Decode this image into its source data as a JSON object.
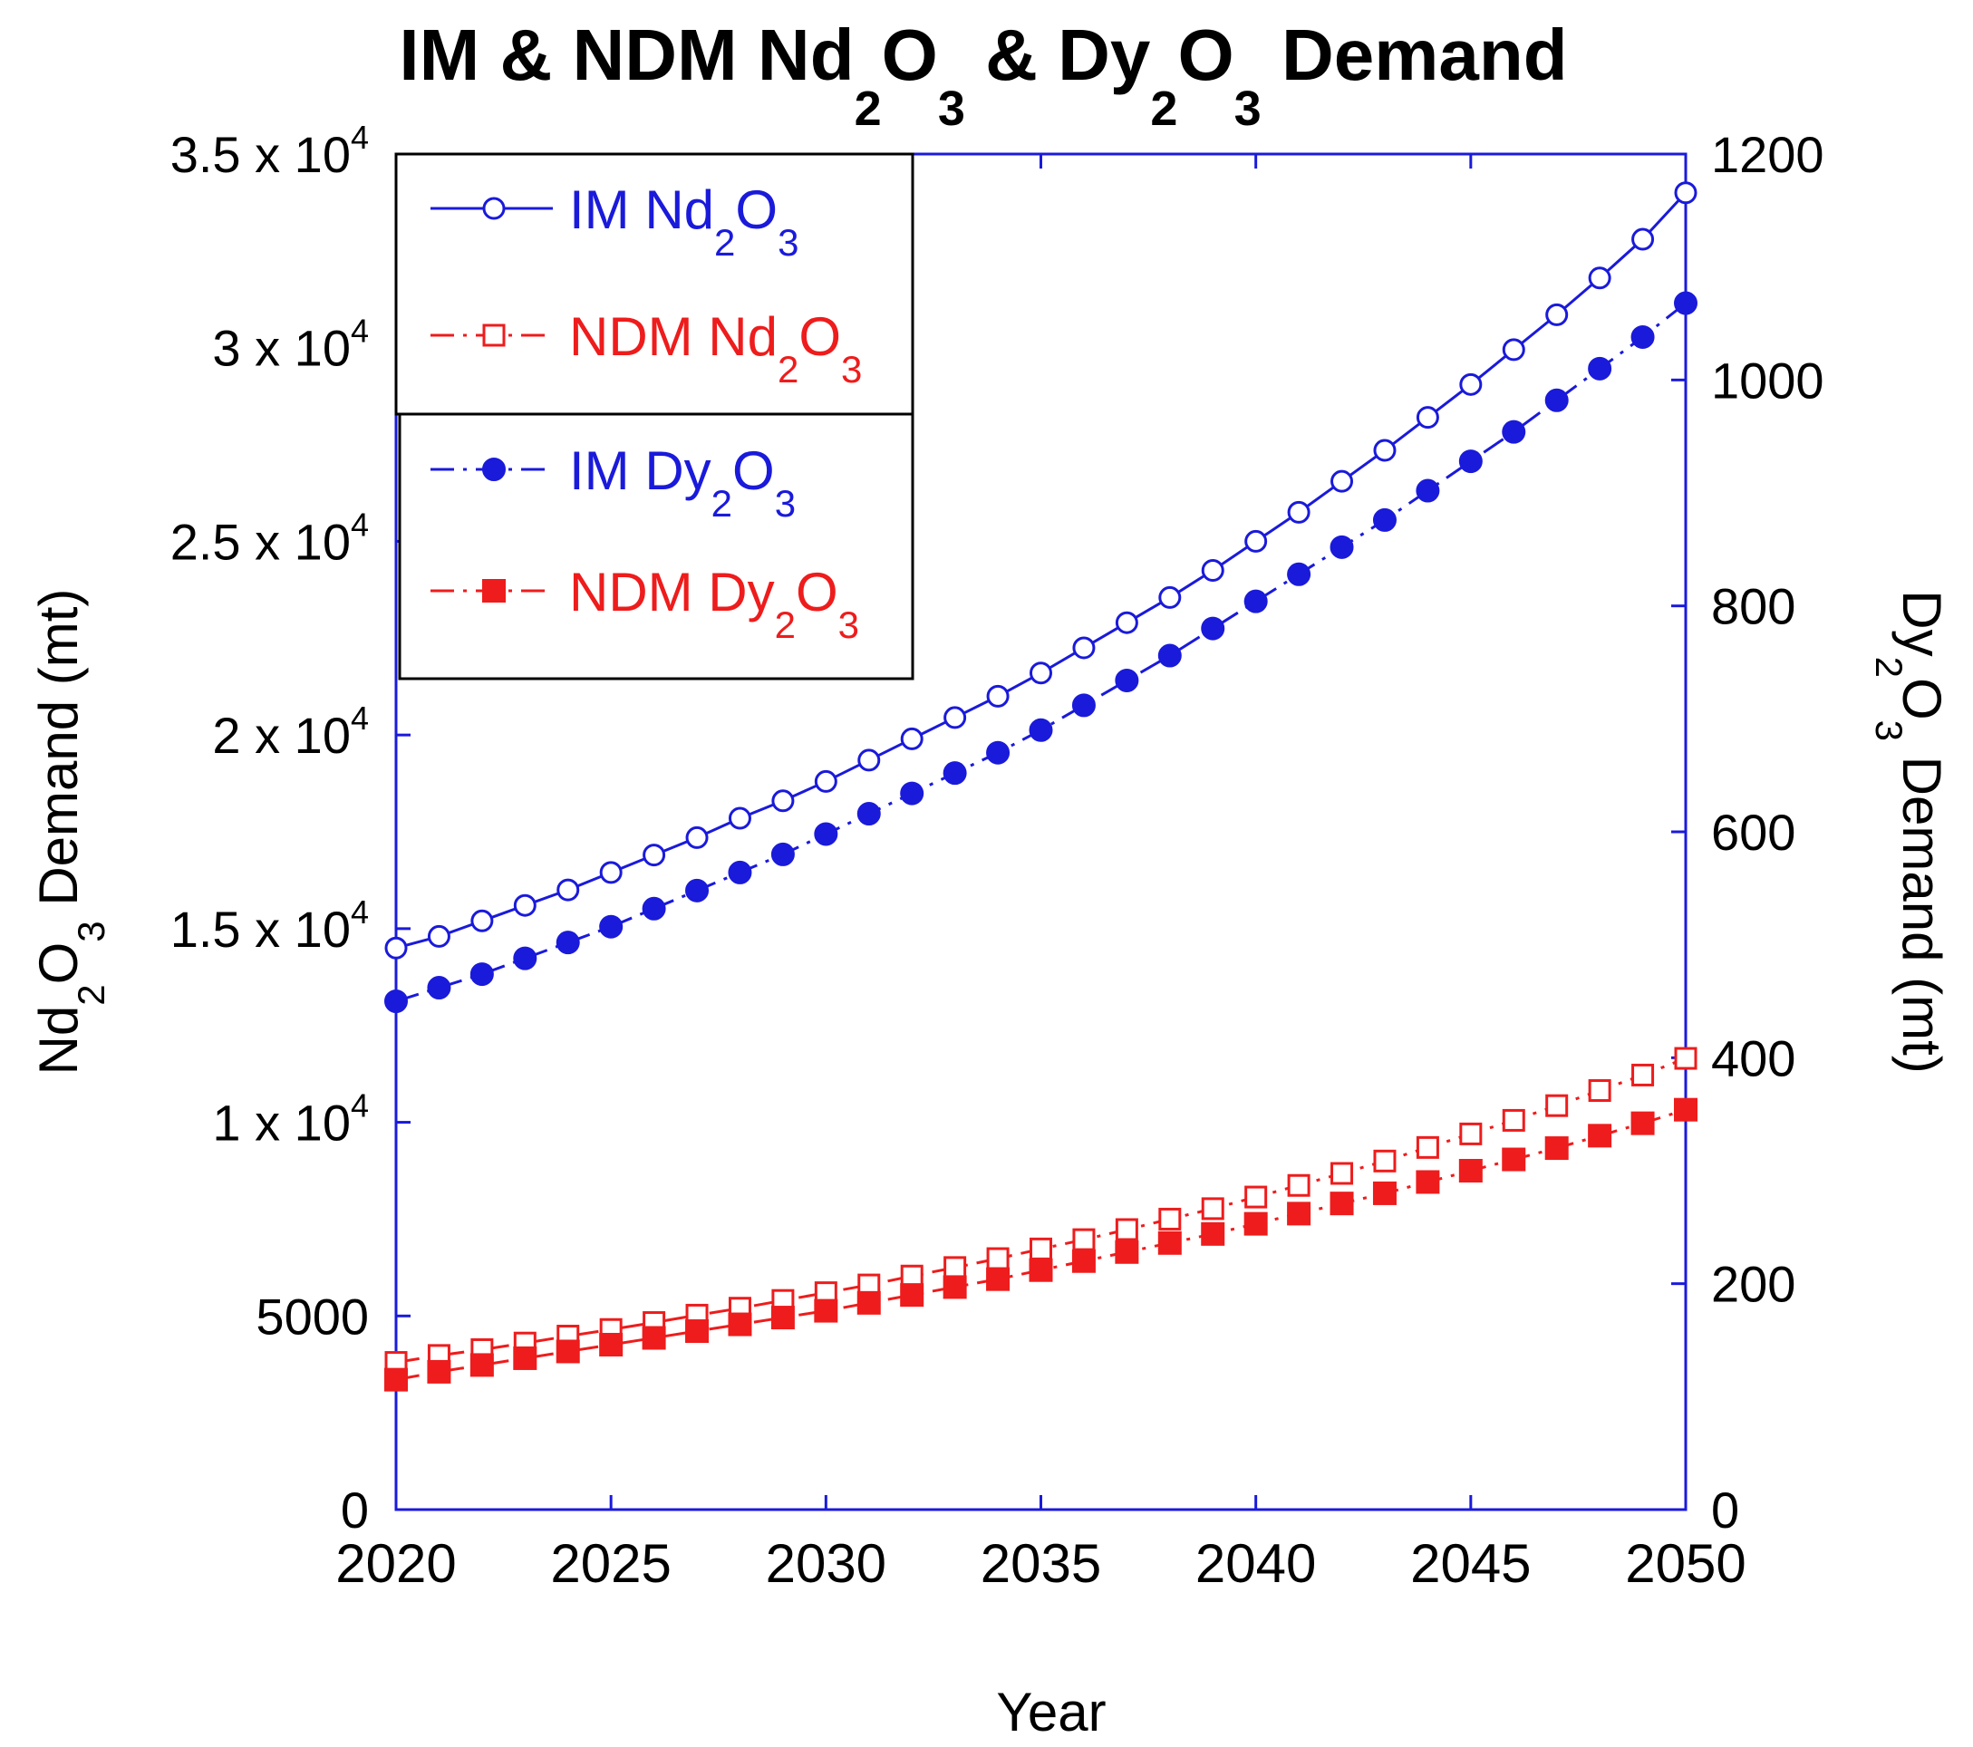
{
  "chart_data": {
    "type": "line",
    "title": {
      "parts": [
        "IM & NDM Nd",
        "2",
        "O",
        "3",
        " & Dy",
        "2",
        "O",
        "3",
        " Demand"
      ]
    },
    "xlabel": "Year",
    "ylabel_left": {
      "parts": [
        "Nd",
        "2",
        "O",
        "3",
        " Demand (mt)"
      ]
    },
    "ylabel_right": {
      "parts": [
        "Dy",
        "2",
        "O",
        "3",
        " Demand (mt)"
      ]
    },
    "xlim": [
      2020,
      2050
    ],
    "ylim_left": [
      0,
      35000
    ],
    "ylim_right": [
      0,
      1200
    ],
    "x_ticks": [
      "2020",
      "2025",
      "2030",
      "2035",
      "2040",
      "2045",
      "2050"
    ],
    "y_ticks_left": [
      {
        "value": 0,
        "label": "0"
      },
      {
        "value": 5000,
        "label": "5000"
      },
      {
        "value": 10000,
        "mant": "1 x 10",
        "exp": "4"
      },
      {
        "value": 15000,
        "mant": "1.5 x 10",
        "exp": "4"
      },
      {
        "value": 20000,
        "mant": "2 x 10",
        "exp": "4"
      },
      {
        "value": 25000,
        "mant": "2.5 x 10",
        "exp": "4"
      },
      {
        "value": 30000,
        "mant": "3 x 10",
        "exp": "4"
      },
      {
        "value": 35000,
        "mant": "3.5 x 10",
        "exp": "4"
      }
    ],
    "y_ticks_right": [
      {
        "value": 0,
        "label": "0"
      },
      {
        "value": 200,
        "label": "200"
      },
      {
        "value": 400,
        "label": "400"
      },
      {
        "value": 600,
        "label": "600"
      },
      {
        "value": 800,
        "label": "800"
      },
      {
        "value": 1000,
        "label": "1000"
      },
      {
        "value": 1200,
        "label": "1200"
      }
    ],
    "x": [
      2020,
      2021,
      2022,
      2023,
      2024,
      2025,
      2026,
      2027,
      2028,
      2029,
      2030,
      2031,
      2032,
      2033,
      2034,
      2035,
      2036,
      2037,
      2038,
      2039,
      2040,
      2041,
      2042,
      2043,
      2044,
      2045,
      2046,
      2047,
      2048,
      2049,
      2050
    ],
    "series": [
      {
        "name": "IM Nd2O3",
        "legend_parts": [
          "IM Nd",
          "2",
          "O",
          "3"
        ],
        "axis": "left",
        "color": "#1a1adb",
        "line": "solid",
        "marker": "circle-open",
        "values": [
          14500,
          14800,
          15200,
          15600,
          16000,
          16450,
          16900,
          17350,
          17850,
          18300,
          18800,
          19350,
          19900,
          20450,
          21000,
          21600,
          22250,
          22900,
          23550,
          24250,
          25000,
          25750,
          26550,
          27350,
          28200,
          29050,
          29950,
          30850,
          31800,
          32800,
          34000
        ]
      },
      {
        "name": "NDM Nd2O3",
        "legend_parts": [
          "NDM Nd",
          "2",
          "O",
          "3"
        ],
        "axis": "left",
        "color": "#ee1c1c",
        "line": "dashdot",
        "marker": "square-open",
        "values": [
          3800,
          3980,
          4130,
          4300,
          4480,
          4650,
          4830,
          5020,
          5200,
          5400,
          5600,
          5800,
          6030,
          6250,
          6480,
          6730,
          6970,
          7230,
          7500,
          7770,
          8070,
          8370,
          8680,
          9000,
          9350,
          9700,
          10050,
          10430,
          10820,
          11220,
          11650
        ]
      },
      {
        "name": "IM Dy2O3",
        "legend_parts": [
          "IM Dy",
          "2",
          "O",
          "3"
        ],
        "axis": "right",
        "color": "#1a1adb",
        "line": "dashdot",
        "marker": "circle-filled",
        "values": [
          450,
          462,
          474,
          488,
          502,
          516,
          532,
          548,
          564,
          580,
          598,
          616,
          634,
          652,
          670,
          690,
          712,
          734,
          756,
          780,
          804,
          828,
          852,
          876,
          902,
          928,
          954,
          982,
          1010,
          1038,
          1068
        ]
      },
      {
        "name": "NDM Dy2O3",
        "legend_parts": [
          "NDM Dy",
          "2",
          "O",
          "3"
        ],
        "axis": "right",
        "color": "#ee1c1c",
        "line": "dashdot",
        "marker": "square-filled",
        "values": [
          115,
          122,
          128,
          134,
          140,
          146,
          152,
          158,
          164,
          170,
          176,
          183,
          190,
          197,
          204,
          212,
          220,
          228,
          236,
          244,
          253,
          262,
          271,
          280,
          290,
          300,
          310,
          320,
          331,
          342,
          354
        ]
      }
    ],
    "legend_position": "top-left"
  }
}
